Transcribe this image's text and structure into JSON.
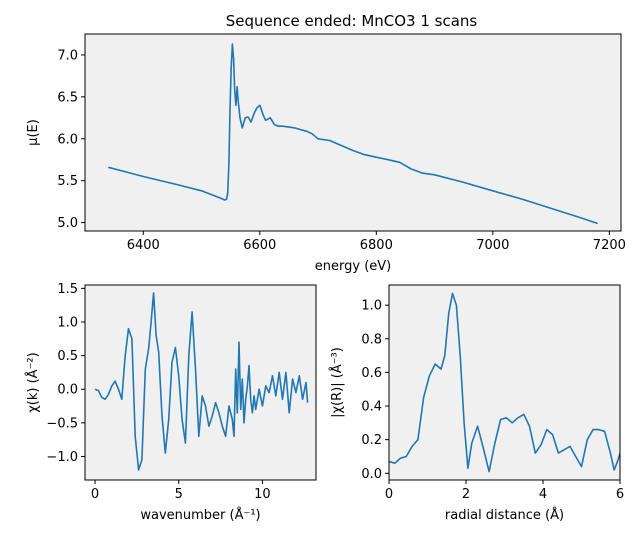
{
  "figure": {
    "title": "Sequence ended: MnCO3  1 scans",
    "colors": {
      "line": "#1f77b4",
      "axes_bg": "#f0f0f0",
      "spine": "#000000",
      "page": "#ffffff"
    }
  },
  "chart_data": [
    {
      "type": "line",
      "title": "Sequence ended: MnCO3  1 scans",
      "xlabel": "energy (eV)",
      "ylabel": "μ(E)",
      "xlim": [
        6300,
        7220
      ],
      "ylim": [
        4.9,
        7.25
      ],
      "xticks": [
        6400,
        6600,
        6800,
        7000,
        7200
      ],
      "yticks": [
        5.0,
        5.5,
        6.0,
        6.5,
        7.0
      ],
      "xtick_labels": [
        "6400",
        "6600",
        "6800",
        "7000",
        "7200"
      ],
      "ytick_labels": [
        "5.0",
        "5.5",
        "6.0",
        "6.5",
        "7.0"
      ],
      "grid": false,
      "series": [
        {
          "x": [
            6340,
            6400,
            6460,
            6500,
            6530,
            6540,
            6543,
            6545,
            6547,
            6549,
            6551,
            6553,
            6555,
            6557,
            6559,
            6561,
            6563,
            6566,
            6570,
            6575,
            6580,
            6585,
            6590,
            6595,
            6600,
            6606,
            6610,
            6618,
            6625,
            6632,
            6640,
            6650,
            6660,
            6670,
            6680,
            6690,
            6700,
            6720,
            6740,
            6760,
            6780,
            6800,
            6820,
            6840,
            6860,
            6880,
            6900,
            6950,
            7000,
            7050,
            7100,
            7150,
            7180
          ],
          "y": [
            5.66,
            5.55,
            5.45,
            5.38,
            5.3,
            5.27,
            5.28,
            5.35,
            5.7,
            6.4,
            6.85,
            7.13,
            6.95,
            6.58,
            6.4,
            6.62,
            6.45,
            6.25,
            6.13,
            6.25,
            6.26,
            6.2,
            6.3,
            6.37,
            6.4,
            6.28,
            6.22,
            6.25,
            6.17,
            6.15,
            6.15,
            6.14,
            6.13,
            6.11,
            6.09,
            6.06,
            6.0,
            5.98,
            5.92,
            5.86,
            5.81,
            5.78,
            5.75,
            5.72,
            5.64,
            5.59,
            5.57,
            5.48,
            5.38,
            5.28,
            5.17,
            5.06,
            4.99
          ]
        }
      ]
    },
    {
      "type": "line",
      "xlabel": "wavenumber (Å⁻¹)",
      "ylabel": "χ(k)  (Å⁻²)",
      "xlim": [
        -0.6,
        13.2
      ],
      "ylim": [
        -1.35,
        1.55
      ],
      "xticks": [
        0,
        5,
        10
      ],
      "yticks": [
        -1.0,
        -0.5,
        0.0,
        0.5,
        1.0,
        1.5
      ],
      "xtick_labels": [
        "0",
        "5",
        "10"
      ],
      "ytick_labels": [
        "−1.0",
        "−0.5",
        "0.0",
        "0.5",
        "1.0",
        "1.5"
      ],
      "grid": false,
      "series": [
        {
          "x": [
            0.0,
            0.2,
            0.4,
            0.6,
            0.8,
            1.0,
            1.2,
            1.4,
            1.6,
            1.8,
            2.0,
            2.2,
            2.4,
            2.6,
            2.8,
            3.0,
            3.2,
            3.35,
            3.5,
            3.65,
            3.8,
            4.0,
            4.2,
            4.4,
            4.6,
            4.8,
            5.0,
            5.2,
            5.4,
            5.6,
            5.8,
            6.0,
            6.2,
            6.4,
            6.6,
            6.8,
            7.0,
            7.2,
            7.4,
            7.6,
            7.8,
            8.0,
            8.2,
            8.3,
            8.4,
            8.5,
            8.6,
            8.7,
            8.8,
            8.9,
            9.0,
            9.1,
            9.2,
            9.3,
            9.4,
            9.5,
            9.6,
            9.8,
            10.0,
            10.2,
            10.4,
            10.6,
            10.8,
            11.0,
            11.2,
            11.4,
            11.6,
            11.8,
            12.0,
            12.2,
            12.4,
            12.6,
            12.7
          ],
          "y": [
            0.0,
            -0.02,
            -0.12,
            -0.15,
            -0.08,
            0.05,
            0.12,
            0.0,
            -0.15,
            0.5,
            0.9,
            0.75,
            -0.7,
            -1.2,
            -1.05,
            0.3,
            0.6,
            1.0,
            1.43,
            0.8,
            0.55,
            -0.4,
            -0.95,
            -0.45,
            0.4,
            0.62,
            0.2,
            -0.45,
            -0.8,
            0.5,
            1.15,
            0.3,
            -0.7,
            -0.1,
            -0.25,
            -0.55,
            -0.4,
            -0.2,
            -0.35,
            -0.55,
            -0.7,
            -0.25,
            -0.45,
            -0.7,
            0.3,
            -0.35,
            0.7,
            -0.3,
            0.15,
            -0.5,
            -0.15,
            0.05,
            0.35,
            -0.15,
            -0.35,
            -0.1,
            -0.3,
            0.0,
            -0.25,
            0.05,
            -0.05,
            0.2,
            -0.1,
            0.25,
            -0.15,
            0.25,
            -0.35,
            0.15,
            -0.05,
            0.2,
            -0.15,
            0.1,
            -0.2
          ]
        }
      ]
    },
    {
      "type": "line",
      "xlabel": "radial distance (Å)",
      "ylabel": "|χ(R)|  (Å⁻³)",
      "xlim": [
        0,
        6
      ],
      "ylim": [
        -0.04,
        1.12
      ],
      "xticks": [
        0,
        2,
        4,
        6
      ],
      "yticks": [
        0.0,
        0.2,
        0.4,
        0.6,
        0.8,
        1.0
      ],
      "xtick_labels": [
        "0",
        "2",
        "4",
        "6"
      ],
      "ytick_labels": [
        "0.0",
        "0.2",
        "0.4",
        "0.6",
        "0.8",
        "1.0"
      ],
      "grid": false,
      "series": [
        {
          "x": [
            0.0,
            0.15,
            0.3,
            0.45,
            0.6,
            0.75,
            0.9,
            1.05,
            1.2,
            1.35,
            1.45,
            1.55,
            1.65,
            1.75,
            1.85,
            1.95,
            2.05,
            2.15,
            2.3,
            2.45,
            2.6,
            2.75,
            2.9,
            3.05,
            3.2,
            3.35,
            3.5,
            3.65,
            3.8,
            3.95,
            4.1,
            4.25,
            4.4,
            4.55,
            4.7,
            4.85,
            5.0,
            5.15,
            5.3,
            5.45,
            5.6,
            5.75,
            5.85,
            5.95,
            6.0
          ],
          "y": [
            0.07,
            0.06,
            0.09,
            0.1,
            0.16,
            0.2,
            0.45,
            0.58,
            0.65,
            0.62,
            0.7,
            0.95,
            1.07,
            1.0,
            0.7,
            0.3,
            0.03,
            0.18,
            0.28,
            0.15,
            0.01,
            0.18,
            0.32,
            0.33,
            0.3,
            0.33,
            0.35,
            0.28,
            0.12,
            0.17,
            0.26,
            0.23,
            0.12,
            0.14,
            0.16,
            0.1,
            0.04,
            0.2,
            0.26,
            0.26,
            0.25,
            0.12,
            0.02,
            0.08,
            0.12
          ]
        }
      ]
    }
  ]
}
